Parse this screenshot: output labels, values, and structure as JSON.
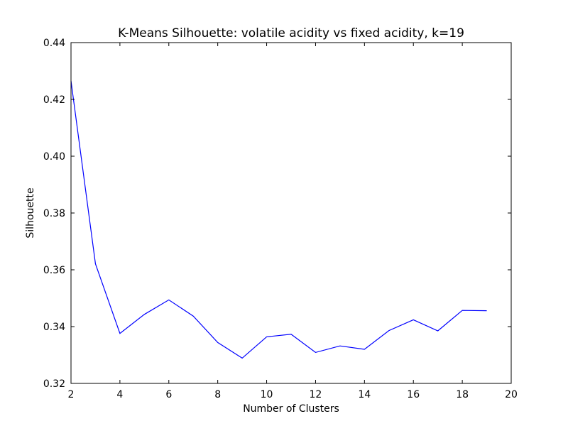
{
  "chart_data": {
    "type": "line",
    "title": "K-Means Silhouette: volatile acidity vs fixed acidity, k=19",
    "xlabel": "Number of Clusters",
    "ylabel": "Silhouette",
    "xlim": [
      2,
      20
    ],
    "ylim": [
      0.32,
      0.44
    ],
    "xticks": [
      2,
      4,
      6,
      8,
      10,
      12,
      14,
      16,
      18,
      20
    ],
    "yticks": [
      0.32,
      0.34,
      0.36,
      0.38,
      0.4,
      0.42,
      0.44
    ],
    "xtick_labels": [
      "2",
      "4",
      "6",
      "8",
      "10",
      "12",
      "14",
      "16",
      "18",
      "20"
    ],
    "ytick_labels": [
      "0.32",
      "0.34",
      "0.36",
      "0.38",
      "0.40",
      "0.42",
      "0.44"
    ],
    "grid": false,
    "series": [
      {
        "color": "#0000ff",
        "x": [
          2,
          3,
          4,
          5,
          6,
          7,
          8,
          9,
          10,
          11,
          12,
          13,
          14,
          15,
          16,
          17,
          18,
          19
        ],
        "y": [
          0.4265,
          0.3621,
          0.3376,
          0.3443,
          0.3494,
          0.3437,
          0.3344,
          0.3289,
          0.3364,
          0.3373,
          0.3309,
          0.3332,
          0.332,
          0.3386,
          0.3424,
          0.3385,
          0.3457,
          0.3456
        ]
      }
    ]
  }
}
